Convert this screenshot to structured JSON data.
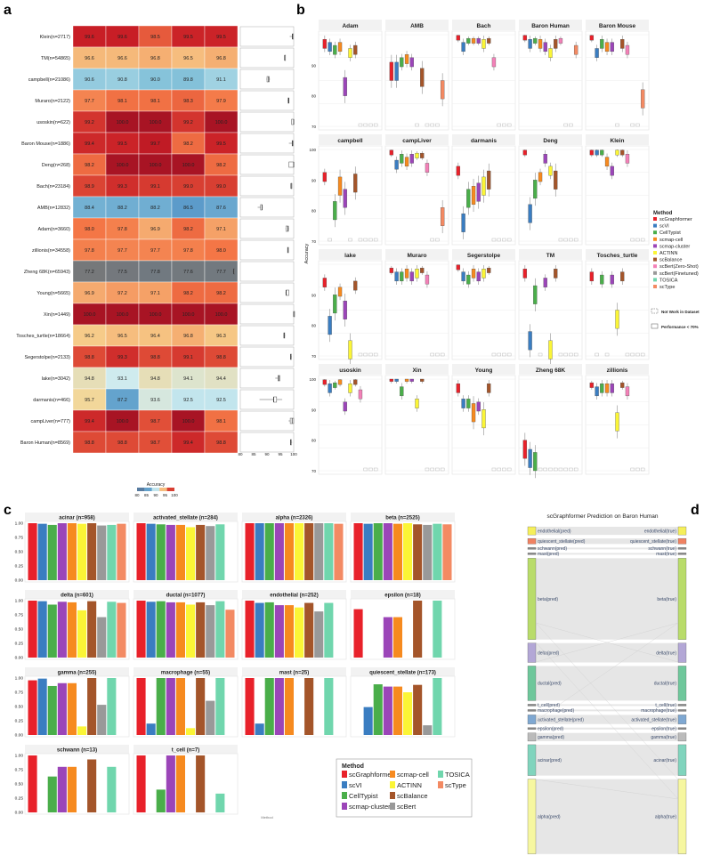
{
  "panel_labels": [
    "a",
    "b",
    "c",
    "d"
  ],
  "colors": {
    "scGraphformer": "#e8212a",
    "scVI": "#3a7dc1",
    "CellTypist": "#4aae4a",
    "scmap-cell": "#f68a1f",
    "scmap-cluster": "#9b45b8",
    "ACTINN": "#fbf536",
    "scBalance": "#a4552a",
    "scBert": "#999999",
    "scBert(Zero-Shot)": "#f381b8",
    "scBert(Finetuned)": "#999999",
    "TOSICA": "#70d6ad",
    "scType": "#f38a63"
  },
  "chart_data": [
    {
      "id": "a",
      "type": "heatmap",
      "rows": [
        {
          "label": "Klein(n=2717)",
          "values": [
            99.6,
            99.6,
            98.5,
            99.5,
            99.5
          ]
        },
        {
          "label": "TM(n=54865)",
          "values": [
            96.6,
            96.6,
            96.8,
            96.5,
            96.8
          ]
        },
        {
          "label": "campbell(n=21086)",
          "values": [
            90.6,
            90.8,
            90.0,
            89.8,
            91.1
          ]
        },
        {
          "label": "Muraro(n=2122)",
          "values": [
            97.7,
            98.1,
            98.1,
            98.3,
            97.9
          ]
        },
        {
          "label": "usoskin(n=622)",
          "values": [
            99.2,
            100.0,
            100.0,
            99.2,
            100.0
          ]
        },
        {
          "label": "Baron Mouse(n=1886)",
          "values": [
            99.4,
            99.5,
            99.7,
            98.2,
            99.5
          ]
        },
        {
          "label": "Deng(n=268)",
          "values": [
            98.2,
            100.0,
            100.0,
            100.0,
            98.2
          ]
        },
        {
          "label": "Bach(n=23184)",
          "values": [
            98.9,
            99.3,
            99.1,
            99.0,
            99.0
          ]
        },
        {
          "label": "AMB(n=12832)",
          "values": [
            88.4,
            88.2,
            88.2,
            86.5,
            87.6
          ]
        },
        {
          "label": "Adam(n=3660)",
          "values": [
            98.0,
            97.8,
            96.9,
            98.2,
            97.1
          ]
        },
        {
          "label": "zillionis(n=34558)",
          "values": [
            97.8,
            97.7,
            97.7,
            97.8,
            98.0
          ]
        },
        {
          "label": "Zheng 68K(n=65943)",
          "values": [
            77.2,
            77.5,
            77.8,
            77.6,
            77.7
          ]
        },
        {
          "label": "Young(n=5665)",
          "values": [
            96.9,
            97.2,
            97.1,
            98.2,
            98.2
          ]
        },
        {
          "label": "Xin(n=1449)",
          "values": [
            100.0,
            100.0,
            100.0,
            100.0,
            100.0
          ]
        },
        {
          "label": "Tosches_turtle(n=18664)",
          "values": [
            96.2,
            96.5,
            96.4,
            96.8,
            96.3
          ]
        },
        {
          "label": "Segerstolpe(n=2133)",
          "values": [
            98.8,
            99.3,
            98.8,
            99.1,
            98.8
          ]
        },
        {
          "label": "lake(n=3042)",
          "values": [
            94.8,
            93.1,
            94.8,
            94.1,
            94.4
          ]
        },
        {
          "label": "darmanis(n=466)",
          "values": [
            95.7,
            87.2,
            93.6,
            92.5,
            92.5
          ]
        },
        {
          "label": "campLiver(n=777)",
          "values": [
            99.4,
            100.0,
            98.7,
            100.0,
            98.1
          ]
        },
        {
          "label": "Baron Human(n=8569)",
          "values": [
            98.8,
            98.8,
            98.7,
            99.4,
            98.8
          ]
        }
      ],
      "legend_title": "Accuracy",
      "legend_ticks": [
        "80",
        "85",
        "90",
        "95",
        "100"
      ],
      "boxplot_axis_ticks": [
        "80",
        "85",
        "90",
        "95",
        "100"
      ]
    },
    {
      "id": "b",
      "type": "boxplot",
      "ylabel": "Accuracy",
      "row_yticks": [
        [
          "70",
          "80",
          "90"
        ],
        [
          "70",
          "80",
          "90",
          "100"
        ],
        [
          "70",
          "80",
          "90"
        ],
        [
          "70",
          "80",
          "90",
          "100"
        ]
      ],
      "methods": [
        "scGraphformer",
        "scVI",
        "CellTypist",
        "scmap-cell",
        "scmap-cluster",
        "ACTINN",
        "scBalance",
        "scBert(Zero-Shot)",
        "scBert(Finetuned)",
        "TOSICA",
        "scType"
      ],
      "legend_title": "Method",
      "legend_notes": [
        "Not Work in Dataset",
        "Performance < 70%"
      ],
      "facets": [
        {
          "name": "Adam",
          "medians": [
            97,
            96,
            95,
            96,
            83,
            94,
            95,
            null,
            null,
            null,
            null
          ]
        },
        {
          "name": "AMB",
          "medians": [
            88,
            88,
            91,
            92,
            91,
            null,
            86,
            null,
            null,
            null,
            82
          ]
        },
        {
          "name": "Bach",
          "medians": [
            99,
            96,
            98,
            98,
            98,
            97,
            98,
            91,
            null,
            null,
            null
          ]
        },
        {
          "name": "Baron Human",
          "medians": [
            99,
            97,
            98,
            97,
            96,
            94,
            97,
            98,
            null,
            null,
            95
          ]
        },
        {
          "name": "Baron Mouse",
          "medians": [
            99,
            94,
            97,
            96,
            96,
            null,
            97,
            95,
            null,
            null,
            79
          ]
        },
        {
          "name": "campbell",
          "medians": [
            91,
            null,
            80,
            88,
            84,
            null,
            89,
            null,
            null,
            null,
            null
          ]
        },
        {
          "name": "campLiver",
          "medians": [
            99,
            95,
            97,
            96,
            97,
            98,
            98,
            94,
            null,
            null,
            78
          ]
        },
        {
          "name": "darmanis",
          "medians": [
            93,
            76,
            84,
            85,
            86,
            88,
            90,
            null,
            null,
            null,
            null
          ]
        },
        {
          "name": "Deng",
          "medians": [
            99,
            79,
            87,
            91,
            97,
            93,
            90,
            null,
            null,
            null,
            null
          ]
        },
        {
          "name": "Klein",
          "medians": [
            99,
            99,
            99,
            96,
            93,
            99,
            99,
            97,
            null,
            null,
            null
          ]
        },
        {
          "name": "lake",
          "medians": [
            94,
            80,
            87,
            91,
            85,
            72,
            93,
            null,
            null,
            null,
            null
          ]
        },
        {
          "name": "Muraro",
          "medians": [
            98,
            96,
            96,
            97,
            96,
            97,
            98,
            95,
            null,
            null,
            null
          ]
        },
        {
          "name": "Segerstolpe",
          "medians": [
            99,
            96,
            95,
            97,
            96,
            97,
            98,
            null,
            null,
            null,
            null
          ]
        },
        {
          "name": "TM",
          "medians": [
            97,
            75,
            90,
            null,
            94,
            72,
            97,
            null,
            null,
            null,
            null
          ]
        },
        {
          "name": "Tosches_turtle",
          "medians": [
            96,
            null,
            95,
            null,
            95,
            82,
            96,
            null,
            null,
            null,
            null
          ]
        },
        {
          "name": "usoskin",
          "medians": [
            99,
            97,
            98,
            99,
            91,
            97,
            99,
            95,
            null,
            null,
            null
          ]
        },
        {
          "name": "Xin",
          "medians": [
            100,
            100,
            96,
            100,
            100,
            92,
            100,
            null,
            null,
            null,
            null
          ]
        },
        {
          "name": "Young",
          "medians": [
            97,
            92,
            92,
            89,
            91,
            87,
            97,
            null,
            null,
            null,
            null
          ]
        },
        {
          "name": "Zheng 68K",
          "medians": [
            77,
            74,
            73,
            null,
            null,
            null,
            null,
            null,
            null,
            null,
            null
          ]
        },
        {
          "name": "zillionis",
          "medians": [
            98,
            96,
            97,
            97,
            97,
            86,
            98,
            96,
            null,
            null,
            null
          ]
        }
      ]
    },
    {
      "id": "c",
      "type": "bar",
      "methods": [
        "scGraphformer",
        "scVI",
        "CellTypist",
        "scmap-cluster",
        "scmap-cell",
        "ACTINN",
        "scBalance",
        "scBert",
        "TOSICA",
        "scType"
      ],
      "yticks": [
        "0.00",
        "0.25",
        "0.50",
        "0.75",
        "1.00"
      ],
      "ylim": [
        0,
        1
      ],
      "xlabel": "Method",
      "legend_title": "Method",
      "legend_order": [
        "scGraphformer",
        "scVI",
        "CellTypist",
        "scmap-cluster",
        "scmap-cell",
        "ACTINN",
        "scBalance",
        "scBert",
        "TOSICA",
        "scType"
      ],
      "facets": [
        {
          "title": "acinar (n=958)",
          "values": [
            1.0,
            0.99,
            0.97,
            1.0,
            1.0,
            0.99,
            1.0,
            0.96,
            0.97,
            0.99
          ]
        },
        {
          "title": "activated_stellate (n=284)",
          "values": [
            1.0,
            0.99,
            0.98,
            0.97,
            0.97,
            0.93,
            0.97,
            0.95,
            0.98,
            null
          ]
        },
        {
          "title": "alpha (n=2326)",
          "values": [
            1.0,
            1.0,
            1.0,
            1.0,
            1.0,
            1.0,
            1.0,
            1.0,
            1.0,
            0.99
          ]
        },
        {
          "title": "beta (n=2525)",
          "values": [
            1.0,
            0.99,
            1.0,
            1.0,
            0.99,
            1.0,
            0.98,
            0.97,
            0.99,
            0.98
          ]
        },
        {
          "title": "delta (n=601)",
          "values": [
            1.0,
            0.99,
            0.93,
            0.98,
            0.97,
            0.83,
            0.99,
            0.71,
            0.98,
            0.96
          ]
        },
        {
          "title": "ductal (n=1077)",
          "values": [
            1.0,
            0.98,
            0.99,
            0.97,
            0.97,
            0.93,
            0.97,
            0.92,
            0.99,
            0.84
          ]
        },
        {
          "title": "endothelial (n=252)",
          "values": [
            1.0,
            0.96,
            0.97,
            0.92,
            0.92,
            0.88,
            0.96,
            0.81,
            0.96,
            null
          ]
        },
        {
          "title": "epsilon (n=18)",
          "values": [
            0.85,
            null,
            null,
            0.71,
            0.71,
            null,
            1.0,
            null,
            1.0,
            null
          ]
        },
        {
          "title": "gamma (n=255)",
          "values": [
            0.96,
            0.99,
            0.86,
            0.91,
            0.91,
            0.15,
            1.0,
            0.53,
            1.0,
            null
          ]
        },
        {
          "title": "macrophage (n=55)",
          "values": [
            1.0,
            0.2,
            1.0,
            1.0,
            1.0,
            0.12,
            1.0,
            0.6,
            1.0,
            null
          ]
        },
        {
          "title": "mast (n=25)",
          "values": [
            1.0,
            0.2,
            1.0,
            1.0,
            1.0,
            null,
            1.0,
            null,
            1.0,
            null
          ]
        },
        {
          "title": "quiescent_stellate (n=173)",
          "values": [
            null,
            0.49,
            0.89,
            0.85,
            0.85,
            0.75,
            0.88,
            0.17,
            1.0,
            null
          ]
        },
        {
          "title": "schwann (n=13)",
          "values": [
            1.0,
            null,
            0.63,
            0.8,
            0.8,
            null,
            0.93,
            null,
            0.8,
            null
          ]
        },
        {
          "title": "t_cell (n=7)",
          "values": [
            1.0,
            null,
            0.4,
            1.0,
            1.0,
            null,
            1.0,
            null,
            0.33,
            null
          ]
        }
      ]
    },
    {
      "id": "d",
      "type": "sankey",
      "title": "scGraphformer Prediction on Baron Human",
      "nodes": [
        {
          "cls": "endothelial",
          "pred": "endothelial(pred)",
          "true": "endothelial(true)",
          "count": 252,
          "color": "#f5ef5a"
        },
        {
          "cls": "quiescent_stellate",
          "pred": "quiescent_stellate(pred)",
          "true": "quiescent_stellate(true)",
          "count": 173,
          "color": "#f08262"
        },
        {
          "cls": "schwann",
          "pred": "schwann(pred)",
          "true": "schwann(true)",
          "count": 13,
          "color": "#888888"
        },
        {
          "cls": "mast",
          "pred": "mast(pred)",
          "true": "mast(true)",
          "count": 25,
          "color": "#888888"
        },
        {
          "cls": "beta",
          "pred": "beta(pred)",
          "true": "beta(true)",
          "count": 2525,
          "color": "#b9dc6a"
        },
        {
          "cls": "delta",
          "pred": "delta(pred)",
          "true": "delta(true)",
          "count": 601,
          "color": "#b3a7d6"
        },
        {
          "cls": "ductal",
          "pred": "ductal(pred)",
          "true": "ductal(true)",
          "count": 1077,
          "color": "#6ec79b"
        },
        {
          "cls": "t_cell",
          "pred": "t_cell(pred)",
          "true": "t_cell(true)",
          "count": 7,
          "color": "#888888"
        },
        {
          "cls": "macrophage",
          "pred": "macrophage(pred)",
          "true": "macrophage(true)",
          "count": 55,
          "color": "#888888"
        },
        {
          "cls": "activated_stellate",
          "pred": "activated_stellate(pred)",
          "true": "activated_stellate(true)",
          "count": 284,
          "color": "#7fa8d2"
        },
        {
          "cls": "epsilon",
          "pred": "epsilon(pred)",
          "true": "epsilon(true)",
          "count": 18,
          "color": "#888888"
        },
        {
          "cls": "gamma",
          "pred": "gamma(pred)",
          "true": "gamma(true)",
          "count": 255,
          "color": "#bbbbbb"
        },
        {
          "cls": "acinar",
          "pred": "acinar(pred)",
          "true": "acinar(true)",
          "count": 958,
          "color": "#80d4bd"
        },
        {
          "cls": "alpha",
          "pred": "alpha(pred)",
          "true": "alpha(true)",
          "count": 2326,
          "color": "#f6f7a0"
        }
      ]
    }
  ]
}
